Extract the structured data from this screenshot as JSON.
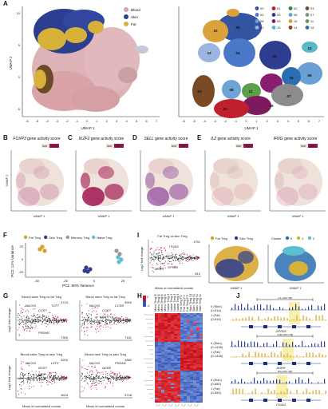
{
  "panels": {
    "A": "A",
    "B": "B",
    "C": "C",
    "D": "D",
    "E": "E",
    "F": "F",
    "G": "G",
    "H": "H",
    "I": "I",
    "J": "J"
  },
  "umap": {
    "xlabel": "UMAP 1",
    "ylabel": "UMAP 2",
    "ticks_x": [
      "-6",
      "-5",
      "-4",
      "-3",
      "-2",
      "-1",
      "0",
      "1",
      "2",
      "3",
      "4",
      "5",
      "6",
      "7"
    ],
    "ticks_y": [
      "10",
      "5",
      "0",
      "-5"
    ],
    "legend_tissue": [
      {
        "name": "Blood",
        "color": "#d9a3a8"
      },
      {
        "name": "Skin",
        "color": "#2c3e8f"
      },
      {
        "name": "Fat",
        "color": "#d8b13a"
      }
    ],
    "clusters": [
      {
        "id": "00",
        "color": "#3453a0"
      },
      {
        "id": "04",
        "color": "#4b77c9"
      },
      {
        "id": "08",
        "color": "#6fa3d6"
      },
      {
        "id": "12",
        "color": "#9ab6e0"
      },
      {
        "id": "01",
        "color": "#c0202b"
      },
      {
        "id": "05",
        "color": "#2d3d8f"
      },
      {
        "id": "09",
        "color": "#8a1e6e"
      },
      {
        "id": "13",
        "color": "#5bb8c9"
      },
      {
        "id": "02",
        "color": "#2b8a3e"
      },
      {
        "id": "06",
        "color": "#6a9fd3"
      },
      {
        "id": "10",
        "color": "#d9a23a"
      },
      {
        "id": "14",
        "color": "#8f3d2a"
      },
      {
        "id": "03",
        "color": "#7a4a26"
      },
      {
        "id": "07",
        "color": "#8c8c8c"
      },
      {
        "id": "11",
        "color": "#5aa04a"
      },
      {
        "id": "15",
        "color": "#2b6fb0"
      }
    ],
    "cluster_labels": [
      "00",
      "04",
      "05",
      "10",
      "12",
      "13",
      "06",
      "15",
      "07",
      "11",
      "08",
      "09",
      "01",
      "03"
    ]
  },
  "gene_activity": {
    "legend_low": "low",
    "legend_high": "high",
    "panels": [
      {
        "gene": "FOXP3",
        "title": "gene activity score"
      },
      {
        "gene": "IKZF2",
        "title": "gene activity score"
      },
      {
        "gene": "SELL",
        "title": "gene activity score"
      },
      {
        "gene": "IL2",
        "title": "gene activity score"
      },
      {
        "gene": "IFNG",
        "title": "gene activity score"
      }
    ],
    "xlabel": "UMAP 1",
    "ylabel": "UMAP 2"
  },
  "pca": {
    "legend": [
      {
        "name": "Fat Treg",
        "color": "#d8a22a"
      },
      {
        "name": "Skin Treg",
        "color": "#2c3e8f"
      },
      {
        "name": "Memory Treg",
        "color": "#9a9a9a"
      },
      {
        "name": "Naive Treg",
        "color": "#5bbfd0"
      }
    ],
    "xlabel": "PC1: 80% Variance",
    "ylabel": "PC2: 11% Variance",
    "xticks": [
      "-50",
      "-25",
      "0",
      "25"
    ],
    "yticks": [
      "20",
      "0",
      "-20"
    ]
  },
  "ma_g": {
    "ylabel": "Log2 fold change",
    "xlabel": "Mean of normalized counts",
    "plots": [
      {
        "title": "Blood naive Treg vs fat Treg",
        "up": "3724",
        "down": "7309",
        "genes": [
          "BACH2",
          "CCR7",
          "TCF7",
          "BATF",
          "IKZF2",
          "CCR8",
          "LEF1",
          "PRDM1"
        ]
      },
      {
        "title": "Blood mem Treg vs fat Treg",
        "up": "3900",
        "down": "7151",
        "genes": [
          "BACH2",
          "CCR7",
          "CCR8",
          "PRDM1",
          "BATF"
        ]
      },
      {
        "title": "Blood naive Treg vs skin Treg",
        "up": "3204",
        "down": "4615",
        "genes": [
          "BACH2",
          "CCR7",
          "LEF1",
          "TCF7",
          "BATF",
          "CCR8"
        ]
      },
      {
        "title": "Blood mem Treg vs skin Treg",
        "up": "1882",
        "down": "3748",
        "genes": [
          "BACH2",
          "CCR8",
          "PRDM1",
          "BATF"
        ]
      }
    ]
  },
  "heatmap": {
    "rows_label_top": [
      "Mem Treg B4",
      "Mem Treg B3",
      "Mem Treg B2",
      "Mem Treg B1",
      "Naive Treg B4",
      "Naive Treg B3",
      "Naive Treg B2",
      "Naive Treg B1",
      "Fat Treg F1",
      "Fat Treg F2",
      "Fat Treg F3",
      "Skin Treg S1",
      "Skin Treg S2",
      "Skin Treg S3",
      "Skin Treg S4"
    ],
    "scale_max": "2",
    "scale_min": "-2"
  },
  "ma_i": {
    "title": "Fat Treg vs skin Treg",
    "up": "1751",
    "down": "812",
    "genes": [
      "ITGA4",
      "AHRR",
      "GPR55"
    ],
    "ylabel": "Log2 fold change",
    "xlabel": "Mean of normalized counts"
  },
  "umap_i": {
    "legend": [
      {
        "name": "Fat Treg",
        "color": "#d8a22a"
      },
      {
        "name": "Skin Treg",
        "color": "#2c3e8f"
      }
    ],
    "cluster_title": "Cluster",
    "clusters": [
      {
        "id": "0",
        "color": "#2b6fb0"
      },
      {
        "id": "1",
        "color": "#d8b13a"
      },
      {
        "id": "2",
        "color": "#5bbfd0"
      }
    ],
    "xlabel": "UMAP 1",
    "ylabel": "UMAP 2"
  },
  "tracks": [
    {
      "span": "21,000 bp",
      "gene": "GPR55",
      "skin_label": "0 (Skin)",
      "fat_label": "1 (Fat)",
      "range1": "(0-614)",
      "range2": "(0-614)"
    },
    {
      "span": "136,000 bp",
      "gene": "AHRR",
      "skin_label": "0 (Skin)",
      "fat_label": "1 (Fat)",
      "range1": "(0-1436)",
      "range2": "(0-1436)"
    },
    {
      "span": "85,000 bp",
      "gene": "ITGA4",
      "skin_label": "0 (Skin)",
      "fat_label": "1 (Fat)",
      "range1": "(0-650)",
      "range2": "(0-650)"
    }
  ]
}
